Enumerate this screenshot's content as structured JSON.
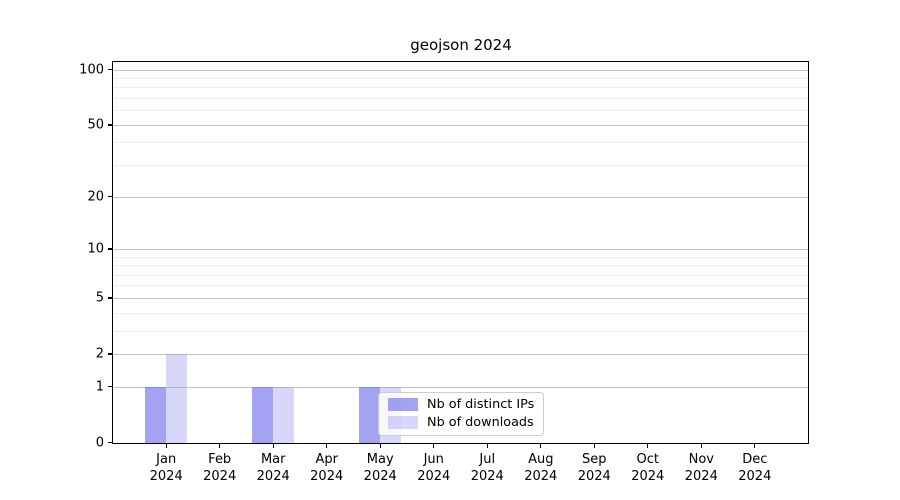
{
  "title": "geojson 2024",
  "chart_data": {
    "type": "bar",
    "title": "geojson 2024",
    "x_categories": [
      "Jan",
      "Feb",
      "Mar",
      "Apr",
      "May",
      "Jun",
      "Jul",
      "Aug",
      "Sep",
      "Oct",
      "Nov",
      "Dec"
    ],
    "x_year": "2024",
    "series": [
      {
        "name": "Nb of distinct IPs",
        "color": "rgba(106,106,232,0.62)",
        "values": [
          1,
          0,
          1,
          0,
          1,
          0,
          0,
          0,
          0,
          0,
          0,
          0
        ]
      },
      {
        "name": "Nb of downloads",
        "color": "rgba(145,145,240,0.36)",
        "values": [
          2,
          0,
          1,
          0,
          1,
          0,
          0,
          0,
          0,
          0,
          0,
          0
        ]
      }
    ],
    "yscale": "log1p",
    "ylim": [
      0,
      110
    ],
    "yticks": [
      0,
      1,
      2,
      5,
      10,
      20,
      50,
      100
    ],
    "yticks_minor": [
      3,
      4,
      6,
      7,
      8,
      9,
      30,
      40,
      60,
      70,
      80,
      90
    ],
    "grid": true,
    "legend_position": "lower center",
    "axis_color": "#000000",
    "grid_major_color": "#c3c3c3",
    "grid_minor_color": "#ededed"
  }
}
